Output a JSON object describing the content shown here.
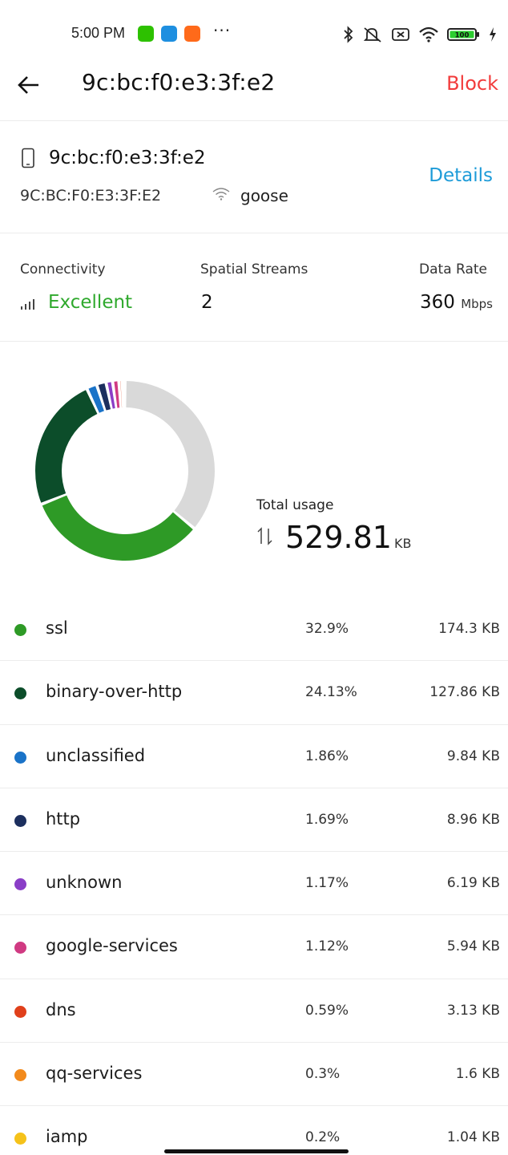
{
  "status_bar": {
    "time": "5:00 PM",
    "more": "···",
    "app_icons": [
      {
        "name": "wechat-icon",
        "color": "#2dc100"
      },
      {
        "name": "upload-icon",
        "color": "#1e8fe0"
      },
      {
        "name": "mi-app-icon",
        "color": "#ff6a1a"
      }
    ],
    "battery": "100"
  },
  "header": {
    "title": "9c:bc:f0:e3:3f:e2",
    "block_label": "Block"
  },
  "device": {
    "name": "9c:bc:f0:e3:3f:e2",
    "mac": "9C:BC:F0:E3:3F:E2",
    "ssid": "goose",
    "details_label": "Details"
  },
  "stats": {
    "connectivity_label": "Connectivity",
    "connectivity_value": "Excellent",
    "streams_label": "Spatial Streams",
    "streams_value": "2",
    "rate_label": "Data Rate",
    "rate_value": "360",
    "rate_unit": "Mbps"
  },
  "usage": {
    "total_label": "Total usage",
    "total_value": "529.81",
    "total_unit": "KB"
  },
  "colors": {
    "accent_red": "#f23b3b",
    "link_blue": "#1d9bd8",
    "good_green": "#2fa92d",
    "remainder_gray": "#d9d9d9"
  },
  "chart_data": {
    "type": "pie",
    "series": [
      {
        "name": "ssl",
        "pct": 32.9,
        "size": "174.3 KB",
        "color": "#2e9a26"
      },
      {
        "name": "binary-over-http",
        "pct": 24.13,
        "size": "127.86 KB",
        "color": "#0c4d2a"
      },
      {
        "name": "unclassified",
        "pct": 1.86,
        "size": "9.84 KB",
        "color": "#1a73c8"
      },
      {
        "name": "http",
        "pct": 1.69,
        "size": "8.96 KB",
        "color": "#1c2f5e"
      },
      {
        "name": "unknown",
        "pct": 1.17,
        "size": "6.19 KB",
        "color": "#8a3ec7"
      },
      {
        "name": "google-services",
        "pct": 1.12,
        "size": "5.94 KB",
        "color": "#d03a82"
      },
      {
        "name": "dns",
        "pct": 0.59,
        "size": "3.13 KB",
        "color": "#e0401b"
      },
      {
        "name": "qq-services",
        "pct": 0.3,
        "size": "1.6 KB",
        "color": "#f28a1c"
      },
      {
        "name": "iamp",
        "pct": 0.2,
        "size": "1.04 KB",
        "color": "#f5c21a"
      }
    ],
    "pct_labels": [
      "32.9%",
      "24.13%",
      "1.86%",
      "1.69%",
      "1.17%",
      "1.12%",
      "0.59%",
      "0.3%",
      "0.2%"
    ]
  }
}
